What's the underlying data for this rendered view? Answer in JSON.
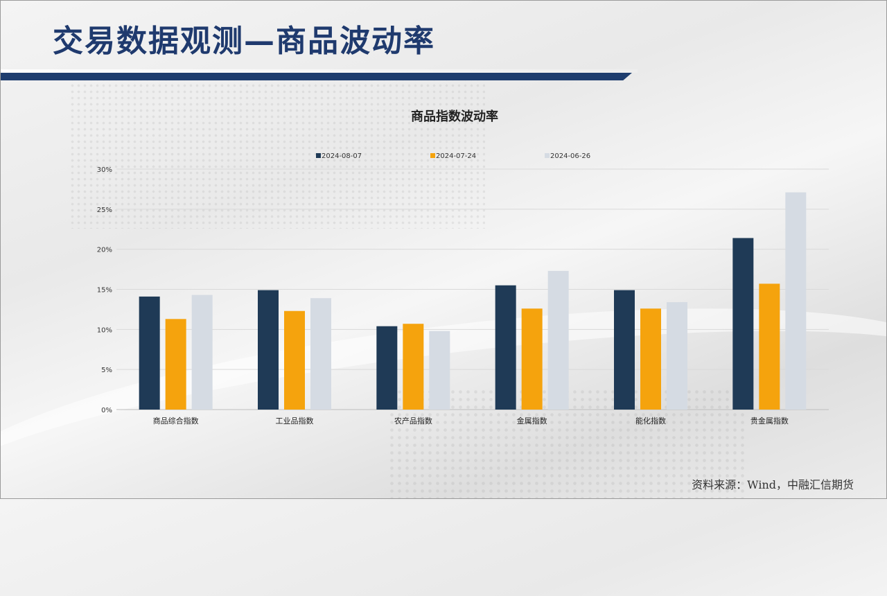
{
  "slide": {
    "title": "交易数据观测—商品波动率",
    "source": "资料来源：Wind，中融汇信期货"
  },
  "colors": {
    "title_text": "#1f3a6e",
    "title_bar": "#1e3d6e"
  },
  "chart_data": {
    "type": "bar",
    "title": "商品指数波动率",
    "categories": [
      "商品综合指数",
      "工业品指数",
      "农产品指数",
      "金属指数",
      "能化指数",
      "贵金属指数"
    ],
    "series": [
      {
        "name": "2024-08-07",
        "color": "#1f3a56",
        "values": [
          14.1,
          14.9,
          10.4,
          15.5,
          14.9,
          21.4
        ]
      },
      {
        "name": "2024-07-24",
        "color": "#f5a30d",
        "values": [
          11.3,
          12.3,
          10.7,
          12.6,
          12.6,
          15.7
        ]
      },
      {
        "name": "2024-06-26",
        "color": "#d5dbe3",
        "values": [
          14.3,
          13.9,
          9.8,
          17.3,
          13.4,
          27.1
        ]
      }
    ],
    "y_ticks": [
      "0%",
      "5%",
      "10%",
      "15%",
      "20%",
      "25%",
      "30%"
    ],
    "ylim": [
      0,
      30
    ],
    "y_unit": "%",
    "grid": true,
    "legend_position": "top-center"
  }
}
